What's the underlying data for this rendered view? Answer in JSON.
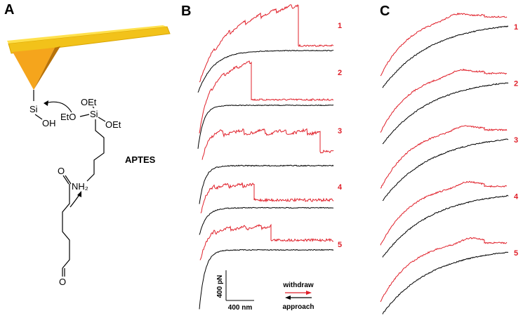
{
  "panel_a": {
    "label": "A",
    "si_tip": "Si",
    "oh": "OH",
    "oet_top": "OEt",
    "eto": "EtO",
    "si_aptes": "Si",
    "oet_right": "OEt",
    "aptes": "APTES",
    "nh2": "NH₂",
    "o_top": "O",
    "o_bottom": "O"
  },
  "panel_b": {
    "label": "B",
    "trace_numbers": [
      1,
      2,
      3,
      4,
      5
    ],
    "scale_force": "400 pN",
    "scale_distance": "400 nm",
    "legend_withdraw": "withdraw",
    "legend_approach": "approach"
  },
  "panel_c": {
    "label": "C",
    "trace_numbers": [
      1,
      2,
      3,
      4,
      5
    ]
  }
}
